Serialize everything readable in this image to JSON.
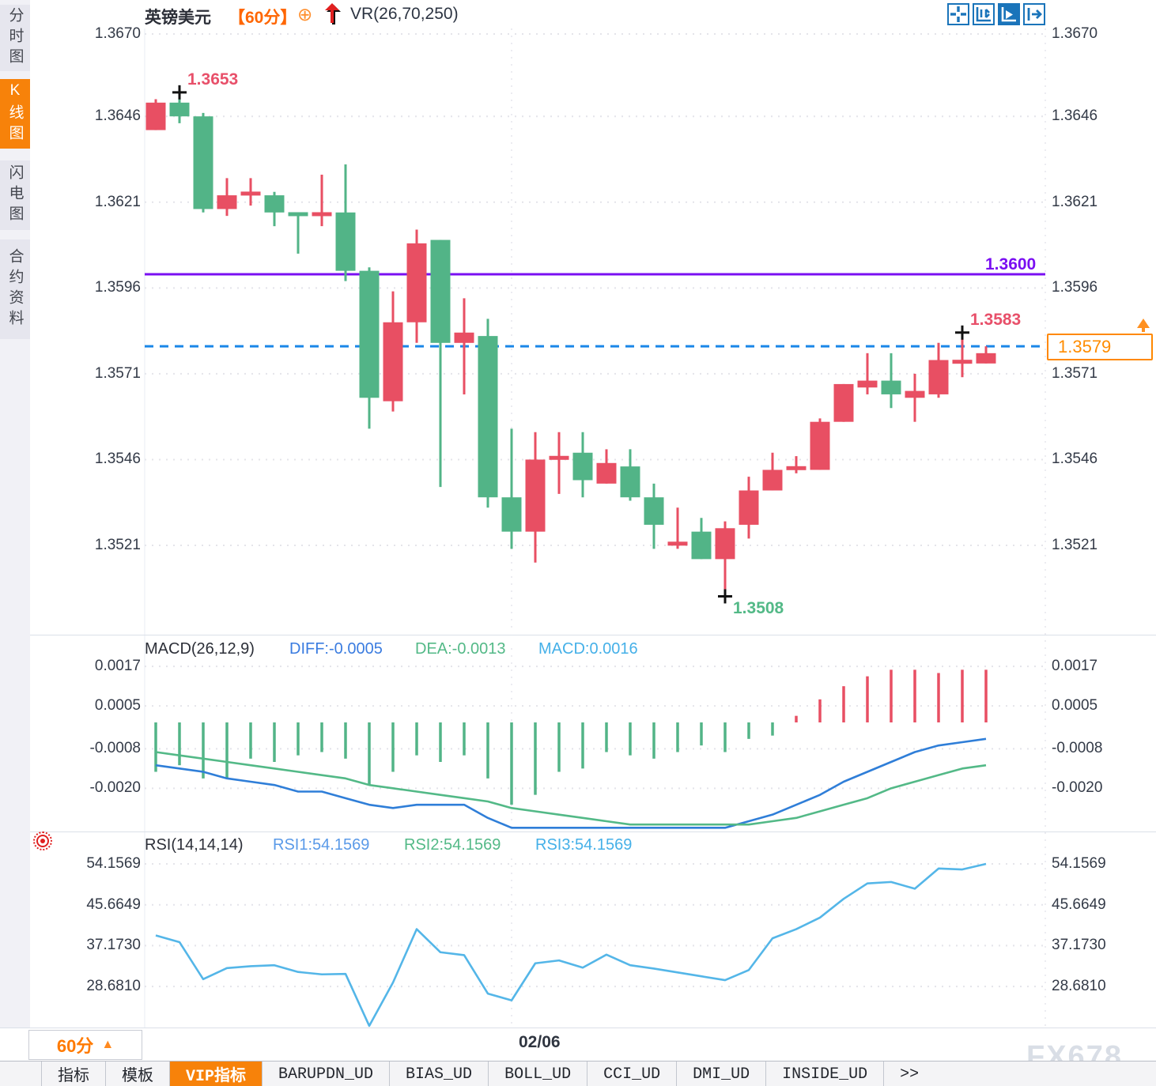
{
  "header": {
    "symbol": "英镑美元",
    "period_tag": "【60分】",
    "globe_icon": "⊕",
    "vr_label": "VR(26,70,250)"
  },
  "sidebar": {
    "items": [
      {
        "label": "分时图",
        "active": false
      },
      {
        "label": "K线图",
        "active": true
      },
      {
        "label": "闪电图",
        "active": false
      },
      {
        "label": "合约资料",
        "active": false
      }
    ]
  },
  "toolbar": {
    "icons": [
      {
        "name": "crosshair-icon",
        "active": false
      },
      {
        "name": "axis-range-icon",
        "active": false
      },
      {
        "name": "axis-play-icon",
        "active": true
      },
      {
        "name": "pan-right-icon",
        "active": false
      }
    ]
  },
  "macd_label": {
    "name": "MACD(26,12,9)",
    "diff": "DIFF:-0.0005",
    "dea": "DEA:-0.0013",
    "macd": "MACD:0.0016"
  },
  "rsi_label": {
    "name": "RSI(14,14,14)",
    "r1": "RSI1:54.1569",
    "r2": "RSI2:54.1569",
    "r3": "RSI3:54.1569"
  },
  "annotations": {
    "hline_label": "1.3600",
    "last_price": "1.3579",
    "high1": "1.3653",
    "low1": "1.3508",
    "high2": "1.3583"
  },
  "footer": {
    "period": "60分",
    "period_arrow": "▲",
    "date": "02/06",
    "watermark": "FX678",
    "tabs": [
      {
        "label": "指标",
        "active": false
      },
      {
        "label": "模板",
        "active": false
      },
      {
        "label": "VIP指标",
        "active": true
      },
      {
        "label": "BARUPDN_UD",
        "active": false
      },
      {
        "label": "BIAS_UD",
        "active": false
      },
      {
        "label": "BOLL_UD",
        "active": false
      },
      {
        "label": "CCI_UD",
        "active": false
      },
      {
        "label": "DMI_UD",
        "active": false
      },
      {
        "label": "INSIDE_UD",
        "active": false
      },
      {
        "label": ">>",
        "active": false
      }
    ]
  },
  "colors": {
    "up": "#e84f63",
    "down": "#52b487",
    "diff_line": "#2f7ed8",
    "dea_line": "#53b987",
    "rsi_line": "#54b6e8",
    "hline": "#7a0ff2",
    "last_line": "#1a86e8",
    "accent_orange": "#f7820a",
    "toolbar_blue": "#1a74ba",
    "grid": "#e4e4ea"
  },
  "chart_data": [
    {
      "type": "candlestick",
      "title": "英镑美元 60分 K线图",
      "y_axis_prices": [
        1.367,
        1.3646,
        1.3621,
        1.3596,
        1.3571,
        1.3546,
        1.3521
      ],
      "hline_price": 1.36,
      "last_price_value": 1.3579,
      "date_gridline_index": 15,
      "date_gridline_label": "02/06",
      "candles": [
        {
          "o": 1.3642,
          "h": 1.3651,
          "l": 1.3642,
          "c": 1.365,
          "d": 1
        },
        {
          "o": 1.365,
          "h": 1.3653,
          "l": 1.3644,
          "c": 1.3646,
          "d": -1
        },
        {
          "o": 1.3646,
          "h": 1.3647,
          "l": 1.3618,
          "c": 1.3619,
          "d": -1
        },
        {
          "o": 1.3619,
          "h": 1.3628,
          "l": 1.3617,
          "c": 1.3623,
          "d": 1
        },
        {
          "o": 1.3623,
          "h": 1.3628,
          "l": 1.362,
          "c": 1.3624,
          "d": 1
        },
        {
          "o": 1.3623,
          "h": 1.3624,
          "l": 1.3614,
          "c": 1.3618,
          "d": -1
        },
        {
          "o": 1.3618,
          "h": 1.3618,
          "l": 1.3606,
          "c": 1.3617,
          "d": -1
        },
        {
          "o": 1.3617,
          "h": 1.3629,
          "l": 1.3614,
          "c": 1.3618,
          "d": 1
        },
        {
          "o": 1.3618,
          "h": 1.3632,
          "l": 1.3598,
          "c": 1.3601,
          "d": -1
        },
        {
          "o": 1.3601,
          "h": 1.3602,
          "l": 1.3555,
          "c": 1.3564,
          "d": -1
        },
        {
          "o": 1.3563,
          "h": 1.3595,
          "l": 1.356,
          "c": 1.3586,
          "d": 1
        },
        {
          "o": 1.3586,
          "h": 1.3613,
          "l": 1.358,
          "c": 1.3609,
          "d": 1
        },
        {
          "o": 1.361,
          "h": 1.361,
          "l": 1.3538,
          "c": 1.358,
          "d": -1
        },
        {
          "o": 1.358,
          "h": 1.3593,
          "l": 1.3565,
          "c": 1.3583,
          "d": 1
        },
        {
          "o": 1.3582,
          "h": 1.3587,
          "l": 1.3532,
          "c": 1.3535,
          "d": -1
        },
        {
          "o": 1.3535,
          "h": 1.3555,
          "l": 1.352,
          "c": 1.3525,
          "d": -1
        },
        {
          "o": 1.3525,
          "h": 1.3554,
          "l": 1.3516,
          "c": 1.3546,
          "d": 1
        },
        {
          "o": 1.3546,
          "h": 1.3554,
          "l": 1.3536,
          "c": 1.3547,
          "d": 1
        },
        {
          "o": 1.3548,
          "h": 1.3554,
          "l": 1.3535,
          "c": 1.354,
          "d": -1
        },
        {
          "o": 1.3539,
          "h": 1.3549,
          "l": 1.3539,
          "c": 1.3545,
          "d": 1
        },
        {
          "o": 1.3544,
          "h": 1.3549,
          "l": 1.3534,
          "c": 1.3535,
          "d": -1
        },
        {
          "o": 1.3535,
          "h": 1.3539,
          "l": 1.352,
          "c": 1.3527,
          "d": -1
        },
        {
          "o": 1.3521,
          "h": 1.3532,
          "l": 1.352,
          "c": 1.3522,
          "d": 1
        },
        {
          "o": 1.3525,
          "h": 1.3529,
          "l": 1.3517,
          "c": 1.3517,
          "d": -1
        },
        {
          "o": 1.3517,
          "h": 1.3528,
          "l": 1.3508,
          "c": 1.3526,
          "d": 1
        },
        {
          "o": 1.3527,
          "h": 1.3541,
          "l": 1.3523,
          "c": 1.3537,
          "d": 1
        },
        {
          "o": 1.3537,
          "h": 1.3548,
          "l": 1.3537,
          "c": 1.3543,
          "d": 1
        },
        {
          "o": 1.3543,
          "h": 1.3547,
          "l": 1.3542,
          "c": 1.3544,
          "d": 1
        },
        {
          "o": 1.3543,
          "h": 1.3558,
          "l": 1.3543,
          "c": 1.3557,
          "d": 1
        },
        {
          "o": 1.3557,
          "h": 1.3568,
          "l": 1.3557,
          "c": 1.3568,
          "d": 1
        },
        {
          "o": 1.3567,
          "h": 1.3577,
          "l": 1.3565,
          "c": 1.3569,
          "d": 1
        },
        {
          "o": 1.3569,
          "h": 1.3577,
          "l": 1.3561,
          "c": 1.3565,
          "d": -1
        },
        {
          "o": 1.3564,
          "h": 1.3571,
          "l": 1.3557,
          "c": 1.3566,
          "d": 1
        },
        {
          "o": 1.3565,
          "h": 1.358,
          "l": 1.3564,
          "c": 1.3575,
          "d": 1
        },
        {
          "o": 1.3574,
          "h": 1.3583,
          "l": 1.357,
          "c": 1.3575,
          "d": 1
        },
        {
          "o": 1.3574,
          "h": 1.3579,
          "l": 1.3574,
          "c": 1.3577,
          "d": 1
        }
      ],
      "markers": [
        {
          "index": 1,
          "type": "high",
          "label": "1.3653",
          "color": "#e8506a"
        },
        {
          "index": 24,
          "type": "low",
          "label": "1.3508",
          "color": "#53b987"
        },
        {
          "index": 34,
          "type": "high",
          "label": "1.3583",
          "color": "#e8506a"
        }
      ]
    },
    {
      "type": "bar",
      "title": "MACD(26,12,9)",
      "y_axis_values": [
        0.0017,
        0.0005,
        -0.0008,
        -0.002
      ],
      "diff_current": -0.0005,
      "dea_current": -0.0013,
      "macd_current": 0.0016,
      "histogram": [
        -0.0015,
        -0.0013,
        -0.0017,
        -0.0017,
        -0.0011,
        -0.0012,
        -0.001,
        -0.0009,
        -0.0011,
        -0.0019,
        -0.0015,
        -0.001,
        -0.0012,
        -0.001,
        -0.0017,
        -0.0025,
        -0.0022,
        -0.0015,
        -0.0014,
        -0.0009,
        -0.001,
        -0.0011,
        -0.0009,
        -0.0007,
        -0.0009,
        -0.0005,
        -0.0004,
        0.0002,
        0.0007,
        0.0011,
        0.0014,
        0.0016,
        0.0016,
        0.0015,
        0.0016,
        0.0016
      ],
      "series": [
        {
          "name": "DIFF",
          "values": [
            -0.0013,
            -0.0014,
            -0.0015,
            -0.0017,
            -0.0018,
            -0.0019,
            -0.0021,
            -0.0021,
            -0.0023,
            -0.0025,
            -0.0026,
            -0.0025,
            -0.0025,
            -0.0025,
            -0.0029,
            -0.0032,
            -0.0032,
            -0.0032,
            -0.0032,
            -0.0032,
            -0.0032,
            -0.0032,
            -0.0032,
            -0.0032,
            -0.0032,
            -0.003,
            -0.0028,
            -0.0025,
            -0.0022,
            -0.0018,
            -0.0015,
            -0.0012,
            -0.0009,
            -0.0007,
            -0.0006,
            -0.0005
          ]
        },
        {
          "name": "DEA",
          "values": [
            -0.0009,
            -0.001,
            -0.0011,
            -0.0012,
            -0.0013,
            -0.0014,
            -0.0015,
            -0.0016,
            -0.0017,
            -0.0019,
            -0.002,
            -0.0021,
            -0.0022,
            -0.0023,
            -0.0024,
            -0.0026,
            -0.0027,
            -0.0028,
            -0.0029,
            -0.003,
            -0.0031,
            -0.0031,
            -0.0031,
            -0.0031,
            -0.0031,
            -0.0031,
            -0.003,
            -0.0029,
            -0.0027,
            -0.0025,
            -0.0023,
            -0.002,
            -0.0018,
            -0.0016,
            -0.0014,
            -0.0013
          ]
        }
      ]
    },
    {
      "type": "line",
      "title": "RSI(14,14,14)",
      "y_axis_values": [
        54.1569,
        45.6649,
        37.173,
        28.681
      ],
      "rsi_current": 54.1569,
      "values": [
        39.3,
        37.9,
        30.2,
        32.5,
        32.9,
        33.1,
        31.7,
        31.2,
        31.3,
        20.5,
        29.5,
        40.6,
        35.8,
        35.2,
        27.2,
        25.8,
        33.5,
        34.1,
        32.6,
        35.3,
        33.1,
        32.4,
        31.6,
        30.8,
        30.0,
        32.1,
        38.7,
        40.6,
        43.0,
        46.9,
        50.1,
        50.4,
        49.0,
        53.2,
        53.0,
        54.1569
      ]
    }
  ]
}
